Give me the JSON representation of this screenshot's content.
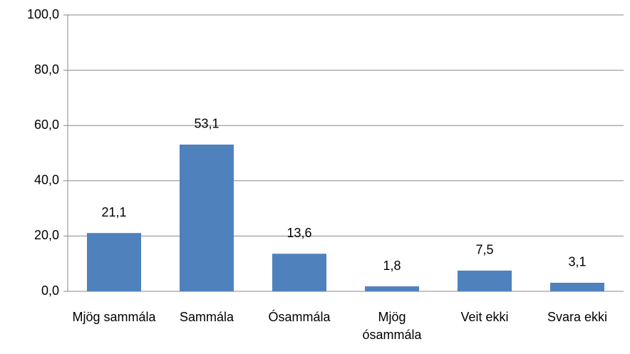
{
  "chart_data": {
    "type": "bar",
    "categories": [
      "Mjög sammála",
      "Sammála",
      "Ósammála",
      "Mjög ósammála",
      "Veit ekki",
      "Svara ekki"
    ],
    "values": [
      21.1,
      53.1,
      13.6,
      1.8,
      7.5,
      3.1
    ],
    "value_labels": [
      "21,1",
      "53,1",
      "13,6",
      "1,8",
      "7,5",
      "3,1"
    ],
    "color": "#4f81bd",
    "ylim": [
      0,
      100
    ],
    "yticks": [
      {
        "value": 0,
        "label": "0,0"
      },
      {
        "value": 20,
        "label": "20,0"
      },
      {
        "value": 40,
        "label": "40,0"
      },
      {
        "value": 60,
        "label": "60,0"
      },
      {
        "value": 80,
        "label": "80,0"
      },
      {
        "value": 100,
        "label": "100,0"
      }
    ],
    "grid": true
  }
}
